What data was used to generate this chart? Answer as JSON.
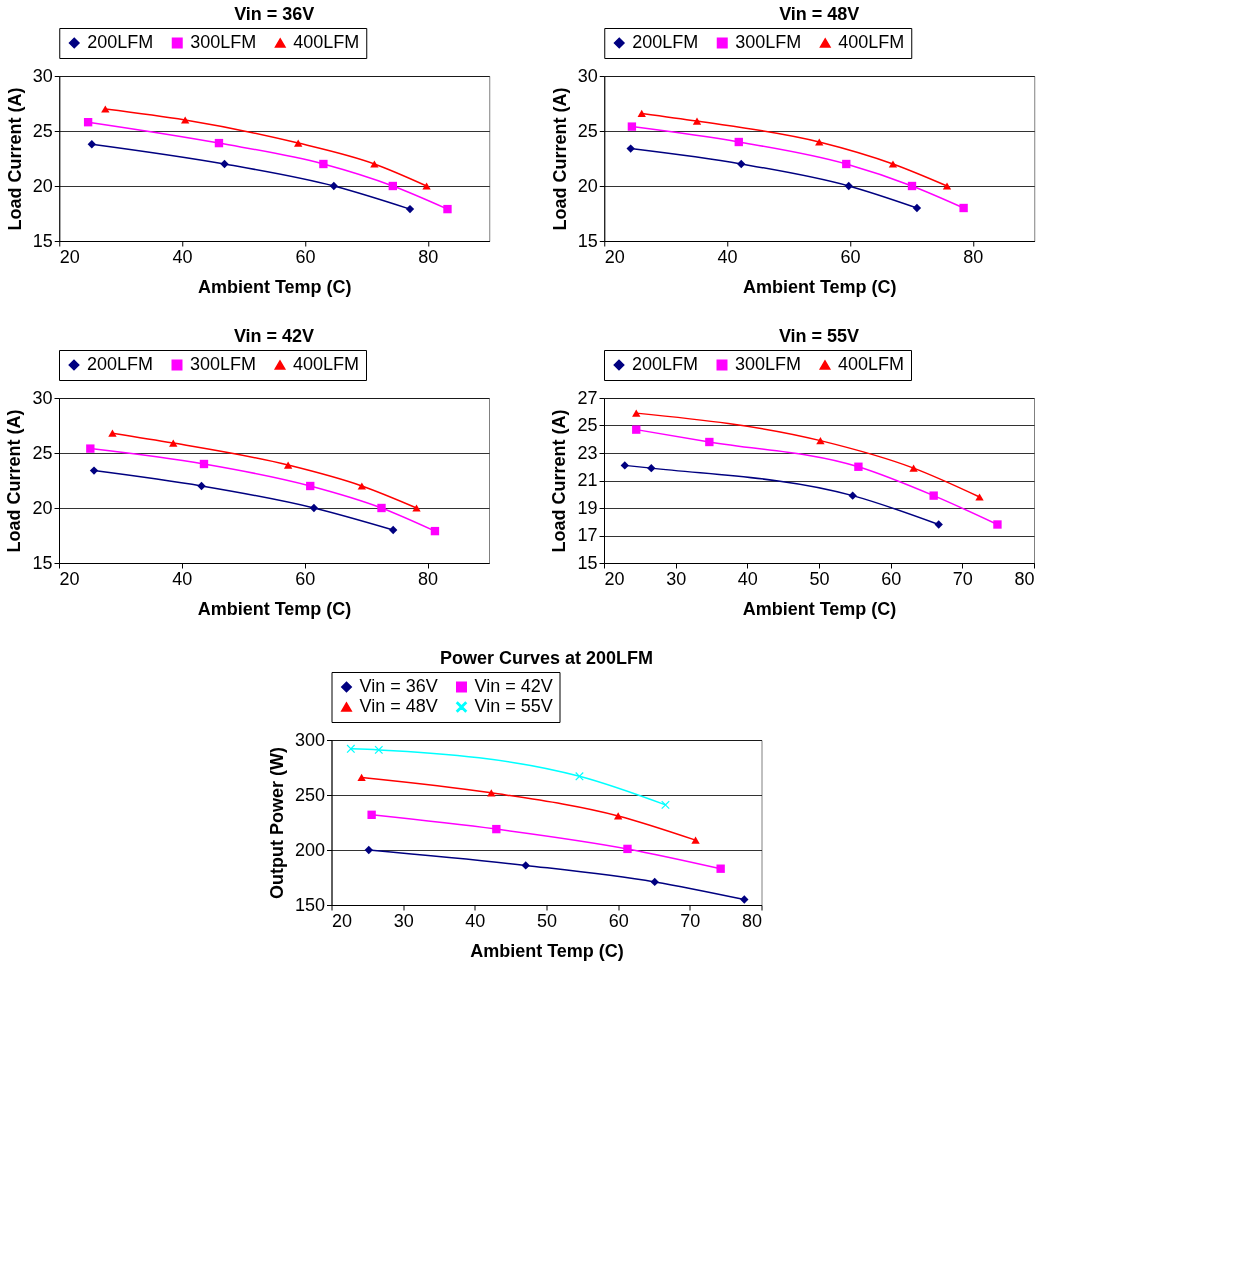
{
  "chart_data": [
    {
      "type": "line",
      "title": "Vin = 36V",
      "xlabel": "Ambient Temp (C)",
      "ylabel": "Load Current (A)",
      "legend": "top",
      "grid": "y",
      "xlim": [
        20,
        90
      ],
      "xticks": [
        20,
        40,
        60,
        80
      ],
      "ylim": [
        15,
        30
      ],
      "yticks": [
        15,
        20,
        25,
        30
      ],
      "series": [
        {
          "name": "200LFM",
          "color": "#000080",
          "marker": "diamond",
          "x": [
            25.3,
            46.9,
            64.7,
            77.1
          ],
          "values": [
            23.8,
            22.0,
            20.0,
            17.9
          ]
        },
        {
          "name": "300LFM",
          "color": "#ff00ff",
          "marker": "square",
          "x": [
            24.7,
            46.0,
            63.0,
            74.3,
            83.2
          ],
          "values": [
            25.8,
            23.9,
            22.0,
            20.0,
            17.9
          ]
        },
        {
          "name": "400LFM",
          "color": "#ff0000",
          "marker": "triangle",
          "x": [
            27.5,
            40.5,
            58.9,
            71.3,
            79.8
          ],
          "values": [
            27.0,
            26.0,
            23.9,
            22.0,
            20.0
          ]
        }
      ]
    },
    {
      "type": "line",
      "title": "Vin = 48V",
      "xlabel": "Ambient Temp (C)",
      "ylabel": "Load Current (A)",
      "legend": "top",
      "grid": "y",
      "xlim": [
        20,
        90
      ],
      "xticks": [
        20,
        40,
        60,
        80
      ],
      "ylim": [
        15,
        30
      ],
      "yticks": [
        15,
        20,
        25,
        30
      ],
      "series": [
        {
          "name": "200LFM",
          "color": "#000080",
          "marker": "diamond",
          "x": [
            24.3,
            42.3,
            59.8,
            70.9
          ],
          "values": [
            23.4,
            22.0,
            20.0,
            18.0
          ]
        },
        {
          "name": "300LFM",
          "color": "#ff00ff",
          "marker": "square",
          "x": [
            24.5,
            41.9,
            59.4,
            70.1,
            78.5
          ],
          "values": [
            25.4,
            24.0,
            22.0,
            20.0,
            18.0
          ]
        },
        {
          "name": "400LFM",
          "color": "#ff0000",
          "marker": "triangle",
          "x": [
            26.1,
            35.1,
            55.0,
            67.0,
            75.8
          ],
          "values": [
            26.6,
            25.9,
            24.0,
            22.0,
            20.0
          ]
        }
      ]
    },
    {
      "type": "line",
      "title": "Vin = 42V",
      "xlabel": "Ambient Temp (C)",
      "ylabel": "Load Current (A)",
      "legend": "top",
      "grid": "y",
      "xlim": [
        20,
        90
      ],
      "xticks": [
        20,
        40,
        60,
        80
      ],
      "ylim": [
        15,
        30
      ],
      "yticks": [
        15,
        20,
        25,
        30
      ],
      "series": [
        {
          "name": "200LFM",
          "color": "#000080",
          "marker": "diamond",
          "x": [
            25.7,
            43.2,
            61.5,
            74.4
          ],
          "values": [
            23.4,
            22.0,
            20.0,
            18.0
          ]
        },
        {
          "name": "300LFM",
          "color": "#ff00ff",
          "marker": "square",
          "x": [
            25.1,
            43.6,
            60.9,
            72.5,
            81.2
          ],
          "values": [
            25.4,
            24.0,
            22.0,
            20.0,
            17.9
          ]
        },
        {
          "name": "400LFM",
          "color": "#ff0000",
          "marker": "triangle",
          "x": [
            28.7,
            38.6,
            57.3,
            69.3,
            78.2
          ],
          "values": [
            26.8,
            25.9,
            23.9,
            22.0,
            20.0
          ]
        }
      ]
    },
    {
      "type": "line",
      "title": "Vin = 55V",
      "xlabel": "Ambient Temp (C)",
      "ylabel": "Load Current (A)",
      "legend": "top",
      "grid": "y",
      "xlim": [
        20,
        80
      ],
      "xticks": [
        20,
        30,
        40,
        50,
        60,
        70,
        80
      ],
      "ylim": [
        15,
        27
      ],
      "yticks": [
        15,
        17,
        19,
        21,
        23,
        25,
        27
      ],
      "series": [
        {
          "name": "200LFM",
          "color": "#000080",
          "marker": "diamond",
          "x": [
            22.9,
            26.6,
            54.7,
            66.7
          ],
          "values": [
            22.1,
            21.9,
            19.9,
            17.8
          ]
        },
        {
          "name": "300LFM",
          "color": "#ff00ff",
          "marker": "square",
          "x": [
            24.5,
            34.7,
            55.5,
            66.0,
            74.9
          ],
          "values": [
            24.7,
            23.8,
            22.0,
            19.9,
            17.8
          ]
        },
        {
          "name": "400LFM",
          "color": "#ff0000",
          "marker": "triangle",
          "x": [
            24.5,
            50.2,
            63.2,
            72.4
          ],
          "values": [
            25.9,
            23.9,
            21.9,
            19.8
          ]
        }
      ]
    },
    {
      "type": "line",
      "title": "Power Curves at 200LFM",
      "xlabel": "Ambient Temp (C)",
      "ylabel": "Output Power (W)",
      "legend": "top",
      "grid": "y",
      "xlim": [
        20,
        80
      ],
      "xticks": [
        20,
        30,
        40,
        50,
        60,
        70,
        80
      ],
      "ylim": [
        150,
        300
      ],
      "yticks": [
        150,
        200,
        250,
        300
      ],
      "series": [
        {
          "name": "Vin = 36V",
          "color": "#000080",
          "marker": "diamond",
          "x": [
            25.2,
            47.1,
            65.1,
            77.6
          ],
          "values": [
            200,
            186,
            171,
            155
          ]
        },
        {
          "name": "Vin = 42V",
          "color": "#ff00ff",
          "marker": "square",
          "x": [
            25.6,
            43.0,
            61.3,
            74.3
          ],
          "values": [
            232,
            219,
            201,
            183
          ]
        },
        {
          "name": "Vin = 48V",
          "color": "#ff0000",
          "marker": "triangle",
          "x": [
            24.2,
            42.3,
            60.0,
            70.8
          ],
          "values": [
            266,
            252,
            231,
            209
          ]
        },
        {
          "name": "Vin = 55V",
          "color": "#00ffff",
          "marker": "cross",
          "x": [
            22.7,
            26.6,
            54.6,
            66.6
          ],
          "values": [
            292,
            291,
            267,
            241
          ]
        }
      ]
    }
  ]
}
